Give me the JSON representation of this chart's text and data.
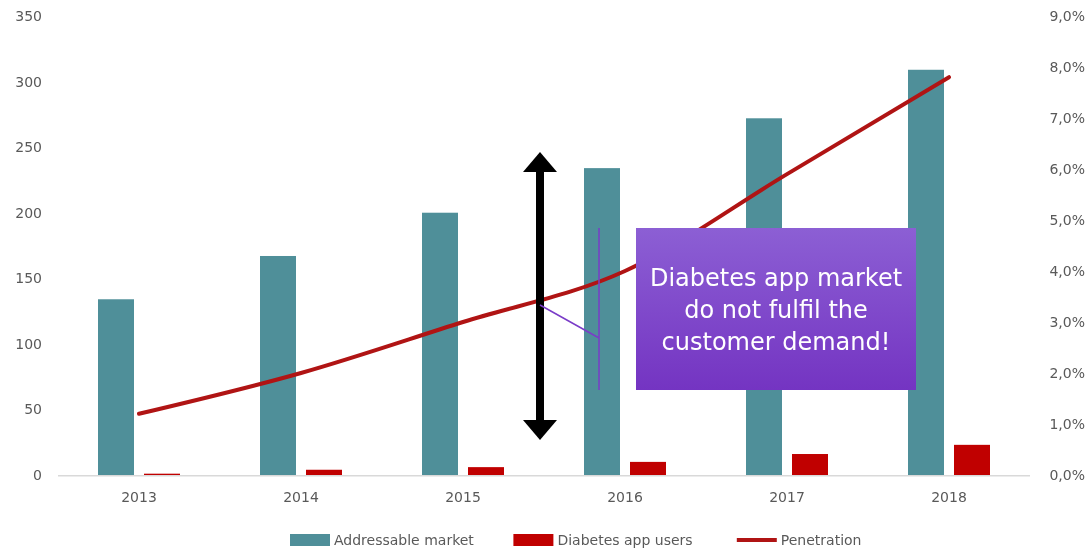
{
  "chart_data": {
    "type": "bar",
    "categories": [
      "2013",
      "2014",
      "2015",
      "2016",
      "2017",
      "2018"
    ],
    "series": [
      {
        "name": "Addressable market",
        "color": "#4f8f99",
        "values": [
          134,
          167,
          200,
          234,
          272,
          309
        ]
      },
      {
        "name": "Diabetes app users",
        "color": "#c00000",
        "values": [
          1,
          4,
          6,
          10,
          16,
          23
        ]
      },
      {
        "name": "Penetration",
        "type": "line",
        "axis": "y2",
        "color": "#b01414",
        "values": [
          1.2,
          2.0,
          3.0,
          4.0,
          5.9,
          7.8
        ]
      }
    ],
    "ylim": [
      0,
      350
    ],
    "yticks": [
      0,
      50,
      100,
      150,
      200,
      250,
      300,
      350
    ],
    "y2lim": [
      0,
      9
    ],
    "y2ticks": [
      {
        "value": 0,
        "label": "0,0%"
      },
      {
        "value": 1,
        "label": "1,0%"
      },
      {
        "value": 2,
        "label": "2,0%"
      },
      {
        "value": 3,
        "label": "3,0%"
      },
      {
        "value": 4,
        "label": "4,0%"
      },
      {
        "value": 5,
        "label": "5,0%"
      },
      {
        "value": 6,
        "label": "6,0%"
      },
      {
        "value": 7,
        "label": "7,0%"
      },
      {
        "value": 8,
        "label": "8,0%"
      },
      {
        "value": 9,
        "label": "9,0%"
      }
    ],
    "annotations": [
      "Diabetes app market do not fulfil the customer demand!"
    ],
    "legend": "bottom",
    "grid": false,
    "marker": "none",
    "line_style": "solid"
  }
}
